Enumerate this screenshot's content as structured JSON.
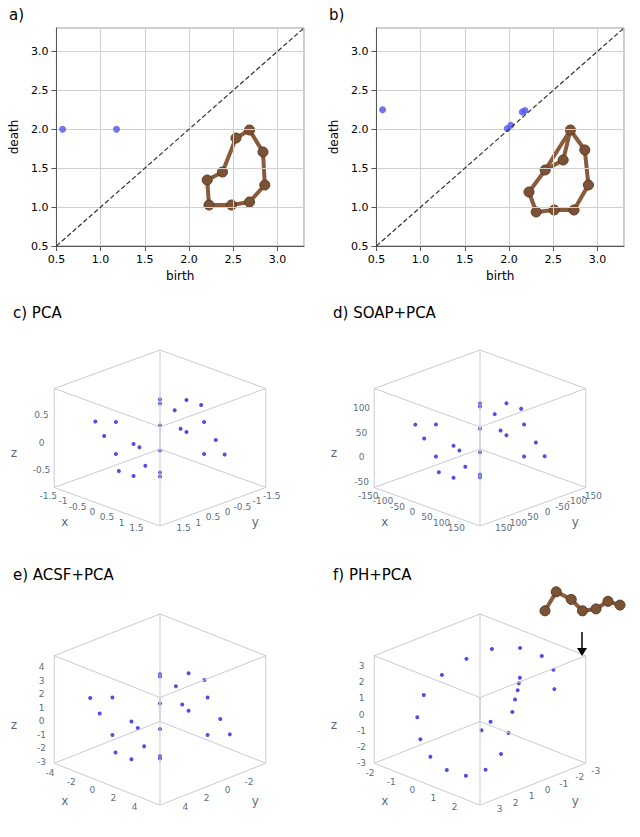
{
  "chart_data": [
    {
      "type": "scatter",
      "title": "a)",
      "xlabel": "birth",
      "ylabel": "death",
      "x": [
        0.57,
        1.18
      ],
      "values": [
        2.0,
        2.0
      ],
      "color": "#5c5cf0",
      "marker": "circle",
      "xlim": [
        0.5,
        3.3
      ],
      "ylim": [
        0.5,
        3.3
      ],
      "xticks": [
        0.5,
        {
          "value": 1,
          "label": "1.0"
        },
        1.5,
        {
          "value": 2,
          "label": "2.0"
        },
        2.5,
        {
          "value": 3,
          "label": "3.0"
        }
      ],
      "yticks": [
        0.5,
        {
          "value": 1,
          "label": "1.0"
        },
        1.5,
        {
          "value": 2,
          "label": "2.0"
        },
        2.5,
        {
          "value": 3,
          "label": "3.0"
        }
      ],
      "grid": true
    },
    {
      "type": "scatter",
      "title": "b)",
      "xlabel": "birth",
      "ylabel": "death",
      "x": [
        0.57,
        1.98,
        2.02,
        2.15,
        2.18
      ],
      "values": [
        2.25,
        2.01,
        2.05,
        2.22,
        2.24
      ],
      "color": "#5c5cf0",
      "marker": "circle",
      "xlim": [
        0.5,
        3.3
      ],
      "ylim": [
        0.5,
        3.3
      ],
      "xticks": [
        0.5,
        {
          "value": 1,
          "label": "1.0"
        },
        1.5,
        {
          "value": 2,
          "label": "2.0"
        },
        2.5,
        {
          "value": 3,
          "label": "3.0"
        }
      ],
      "yticks": [
        0.5,
        {
          "value": 1,
          "label": "1.0"
        },
        1.5,
        {
          "value": 2,
          "label": "2.0"
        },
        2.5,
        {
          "value": 3,
          "label": "3.0"
        }
      ],
      "grid": true
    },
    {
      "type": "scatter3d",
      "title": "c) PCA",
      "xlabel": "x",
      "ylabel": "y",
      "zlabel": "z",
      "color": "#2222dd",
      "marker": "circle",
      "xlim": [
        -1.8,
        1.8
      ],
      "ylim": [
        -1.8,
        1.8
      ],
      "zlim": [
        -0.9,
        0.9
      ],
      "xticks": [
        -1.5,
        -1,
        -0.5,
        0,
        0.5,
        1,
        1.5
      ],
      "yticks": [
        -1.5,
        -1,
        -0.5,
        0,
        0.5,
        1,
        1.5
      ],
      "zticks": [
        -0.5,
        0,
        0.5
      ],
      "points": [
        [
          -1.5,
          0,
          0
        ],
        [
          1.5,
          0,
          0
        ],
        [
          0,
          -1.5,
          0
        ],
        [
          0,
          1.5,
          0
        ],
        [
          -1.1,
          -1.1,
          0.2
        ],
        [
          1.1,
          1.1,
          -0.2
        ],
        [
          -1.1,
          1.1,
          0.3
        ],
        [
          1.1,
          -1.1,
          -0.3
        ],
        [
          0,
          0,
          0.7
        ],
        [
          0,
          0,
          -0.7
        ],
        [
          0.7,
          0.7,
          0.5
        ],
        [
          -0.7,
          -0.7,
          -0.5
        ],
        [
          0.7,
          -0.7,
          0.6
        ],
        [
          -0.7,
          0.7,
          -0.6
        ],
        [
          1.2,
          0.3,
          0.4
        ],
        [
          -1.2,
          -0.3,
          -0.4
        ],
        [
          0.3,
          1.2,
          -0.4
        ],
        [
          -0.3,
          -1.2,
          0.4
        ],
        [
          0.5,
          0,
          0.6
        ],
        [
          -0.5,
          0,
          -0.6
        ],
        [
          1.3,
          -0.6,
          0.1
        ],
        [
          -1.3,
          0.6,
          -0.1
        ],
        [
          0.6,
          1.3,
          0.2
        ],
        [
          -0.6,
          -1.3,
          -0.2
        ]
      ]
    },
    {
      "type": "scatter3d",
      "title": "d) SOAP+PCA",
      "xlabel": "x",
      "ylabel": "y",
      "zlabel": "z",
      "color": "#2222dd",
      "marker": "circle",
      "xlim": [
        -180,
        180
      ],
      "ylim": [
        -180,
        180
      ],
      "zlim": [
        -70,
        130
      ],
      "xticks": [
        -150,
        -100,
        -50,
        0,
        50,
        100,
        150
      ],
      "yticks": [
        -150,
        -100,
        -50,
        0,
        50,
        100,
        150
      ],
      "zticks": [
        -50,
        0,
        50,
        100
      ],
      "points": [
        [
          -150,
          0,
          25
        ],
        [
          150,
          0,
          25
        ],
        [
          0,
          -150,
          25
        ],
        [
          0,
          150,
          25
        ],
        [
          -110,
          -110,
          46
        ],
        [
          110,
          110,
          4
        ],
        [
          -110,
          110,
          57
        ],
        [
          110,
          -110,
          -7
        ],
        [
          0,
          0,
          100
        ],
        [
          0,
          0,
          -50
        ],
        [
          70,
          70,
          79
        ],
        [
          -70,
          -70,
          -29
        ],
        [
          70,
          -70,
          89
        ],
        [
          -70,
          70,
          -39
        ],
        [
          120,
          30,
          68
        ],
        [
          -120,
          -30,
          -18
        ],
        [
          30,
          120,
          -18
        ],
        [
          -30,
          -120,
          68
        ],
        [
          50,
          0,
          89
        ],
        [
          -50,
          0,
          -39
        ],
        [
          130,
          -60,
          36
        ],
        [
          -130,
          60,
          14
        ],
        [
          60,
          130,
          46
        ],
        [
          -60,
          -130,
          4
        ]
      ]
    },
    {
      "type": "scatter3d",
      "title": "e) ACSF+PCA",
      "xlabel": "x",
      "ylabel": "y",
      "zlabel": "z",
      "color": "#2222dd",
      "marker": "circle",
      "xlim": [
        -5,
        5
      ],
      "ylim": [
        -5,
        5
      ],
      "zlim": [
        -3.5,
        4.5
      ],
      "xticks": [
        -4,
        -2,
        0,
        2,
        4
      ],
      "yticks": [
        -2,
        0,
        2,
        4
      ],
      "zticks": [
        -3,
        -2,
        -1,
        0,
        1,
        2,
        3,
        4
      ],
      "points": [
        [
          -4.5,
          0,
          0
        ],
        [
          4.5,
          0,
          0
        ],
        [
          0,
          -4.5,
          0
        ],
        [
          0,
          4.5,
          0
        ],
        [
          -3.3,
          -3.3,
          0.9
        ],
        [
          3.3,
          3.3,
          -0.9
        ],
        [
          -3.3,
          3.3,
          1.35
        ],
        [
          3.3,
          -3.3,
          -1.35
        ],
        [
          0,
          0,
          3.15
        ],
        [
          0,
          0,
          -3.15
        ],
        [
          2.1,
          2.1,
          2.25
        ],
        [
          -2.1,
          -2.1,
          -2.25
        ],
        [
          2.1,
          -2.1,
          2.7
        ],
        [
          -2.1,
          2.1,
          -2.7
        ],
        [
          3.6,
          0.9,
          1.8
        ],
        [
          -3.6,
          -0.9,
          -1.8
        ],
        [
          0.9,
          3.6,
          -1.8
        ],
        [
          -0.9,
          -3.6,
          1.8
        ],
        [
          1.5,
          0,
          2.7
        ],
        [
          -1.5,
          0,
          -2.7
        ],
        [
          3.9,
          -1.8,
          0.45
        ],
        [
          -3.9,
          1.8,
          -0.45
        ],
        [
          1.8,
          3.9,
          0.9
        ],
        [
          -1.8,
          -3.9,
          -0.9
        ]
      ]
    },
    {
      "type": "scatter3d",
      "title": "f) PH+PCA",
      "xlabel": "x",
      "ylabel": "y",
      "zlabel": "z",
      "color": "#2222dd",
      "marker": "circle",
      "xlim": [
        -2.5,
        2.5
      ],
      "ylim": [
        -3.3,
        3.3
      ],
      "zlim": [
        -3.3,
        3.3
      ],
      "xticks": [
        -2,
        -1,
        0,
        1,
        2
      ],
      "yticks": [
        -3,
        -2,
        -1,
        0,
        1,
        2,
        3
      ],
      "zticks": [
        -3,
        -2,
        -1,
        0,
        1,
        2,
        3
      ],
      "points": [
        [
          2,
          -2,
          1.5
        ],
        [
          1.5,
          -2.6,
          2.2
        ],
        [
          0.8,
          -2.8,
          2.6
        ],
        [
          0,
          -2.5,
          2.8
        ],
        [
          -0.8,
          -1.8,
          2.6
        ],
        [
          -1.4,
          -1,
          2
        ],
        [
          -1.8,
          0,
          1.2
        ],
        [
          -1.9,
          1,
          0.3
        ],
        [
          -1.6,
          1.8,
          -0.6
        ],
        [
          -1,
          2.4,
          -1.4
        ],
        [
          -0.3,
          2.7,
          -2
        ],
        [
          0.4,
          2.6,
          -2.5
        ],
        [
          1,
          2.2,
          -2.7
        ],
        [
          1.4,
          1.5,
          -2.4
        ],
        [
          1.6,
          0.8,
          -1.6
        ],
        [
          1.5,
          0.2,
          -0.6
        ],
        [
          1.3,
          -0.3,
          0.4
        ],
        [
          1.2,
          -0.6,
          1.0
        ],
        [
          1.1,
          -0.9,
          1.4
        ],
        [
          1.0,
          -1.1,
          1.7
        ],
        [
          0.9,
          -1.3,
          1.9
        ],
        [
          0.5,
          0,
          -0.5
        ],
        [
          0.3,
          0.3,
          -1.0
        ]
      ]
    }
  ]
}
